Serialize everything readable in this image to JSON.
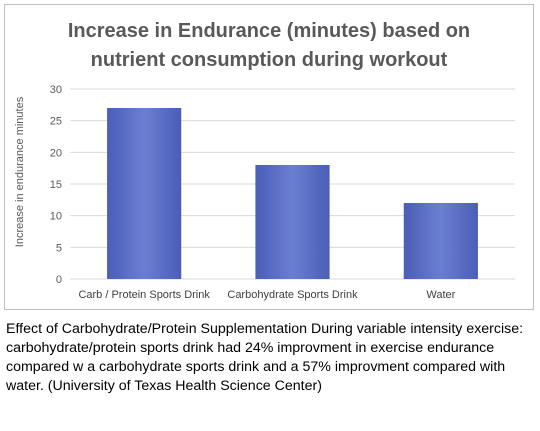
{
  "chart_data": {
    "type": "bar",
    "title_lines": [
      "Increase in Endurance (minutes) based on",
      "nutrient consumption during workout"
    ],
    "ylabel": "Increase in endurance minutes",
    "xlabel": "",
    "categories": [
      "Carb / Protein Sports Drink",
      "Carbohydrate Sports Drink",
      "Water"
    ],
    "values": [
      27,
      18,
      12
    ],
    "ylim": [
      0,
      30
    ],
    "yticks": [
      0,
      5,
      10,
      15,
      20,
      25,
      30
    ],
    "grid": true,
    "legend": "none",
    "bar_color": "#4a5db8",
    "bar_color_light": "#6b7fd1",
    "grid_color": "#d9d9d9"
  },
  "caption": "Effect of Carbohydrate/Protein Supplementation During variable intensity exercise: carbohydrate/protein sports drink had 24% improvment in exercise endurance compared w a carbohydrate sports drink and a 57% improvment compared with water. (University of Texas Health Science Center)"
}
